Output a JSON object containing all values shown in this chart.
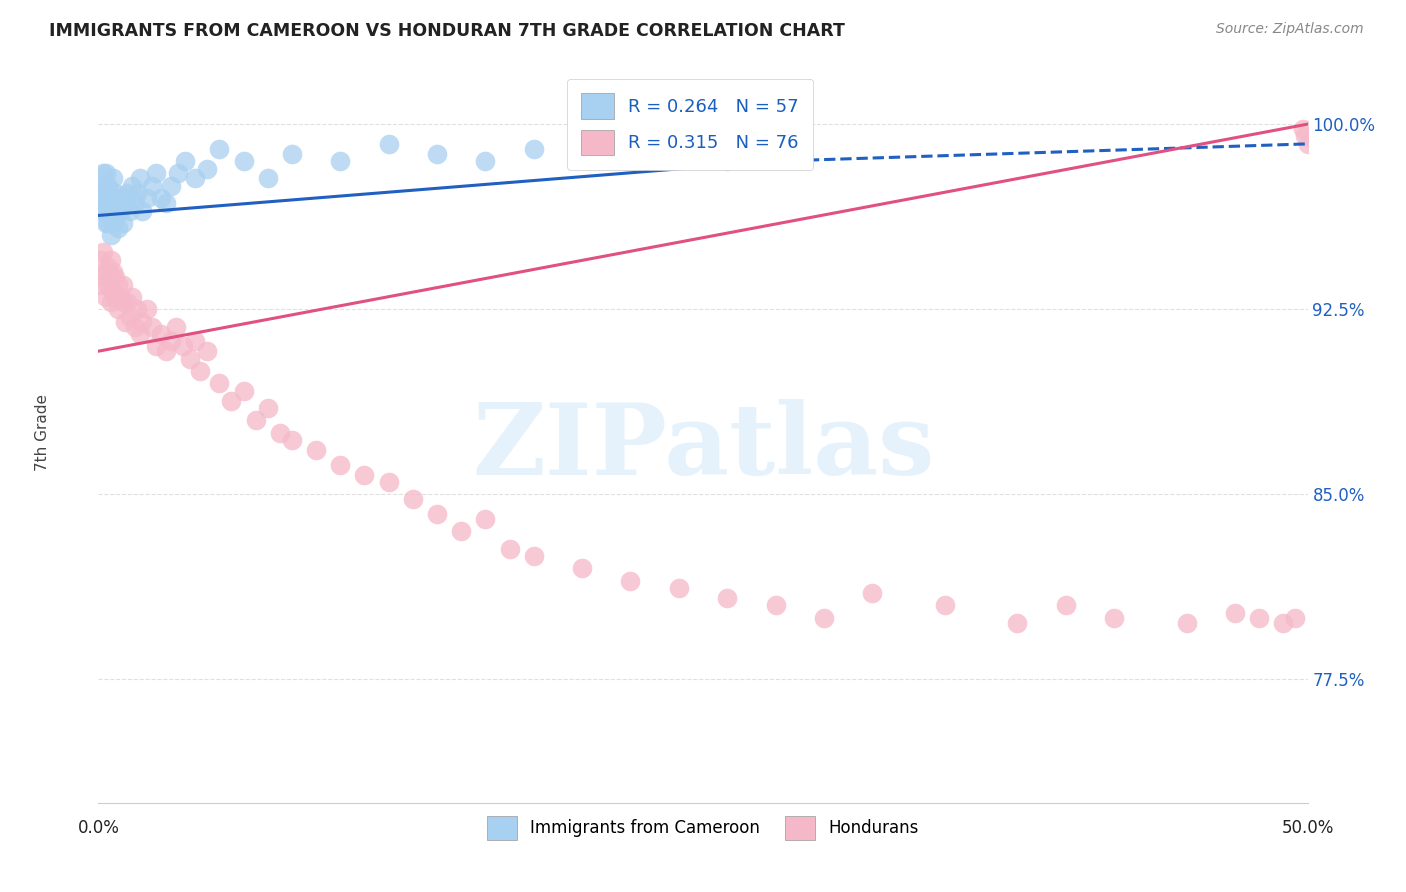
{
  "title": "IMMIGRANTS FROM CAMEROON VS HONDURAN 7TH GRADE CORRELATION CHART",
  "source": "Source: ZipAtlas.com",
  "ylabel": "7th Grade",
  "ylim": [
    0.725,
    1.025
  ],
  "xlim": [
    0.0,
    0.5
  ],
  "ytick_positions": [
    0.775,
    0.85,
    0.925,
    1.0
  ],
  "ytick_labels": [
    "77.5%",
    "85.0%",
    "92.5%",
    "100.0%"
  ],
  "legend_blue_label": "R = 0.264   N = 57",
  "legend_pink_label": "R = 0.315   N = 76",
  "legend1_label": "Immigrants from Cameroon",
  "legend2_label": "Hondurans",
  "blue_color": "#a8d0f0",
  "pink_color": "#f5b8c8",
  "blue_line_color": "#2060c0",
  "pink_line_color": "#e05080",
  "watermark_text": "ZIPatlas",
  "background_color": "#ffffff",
  "grid_color": "#e0e0e0",
  "blue_x": [
    0.001,
    0.001,
    0.002,
    0.002,
    0.002,
    0.003,
    0.003,
    0.003,
    0.003,
    0.004,
    0.004,
    0.004,
    0.005,
    0.005,
    0.005,
    0.006,
    0.006,
    0.006,
    0.007,
    0.007,
    0.008,
    0.008,
    0.009,
    0.01,
    0.01,
    0.011,
    0.012,
    0.013,
    0.014,
    0.015,
    0.016,
    0.017,
    0.018,
    0.02,
    0.022,
    0.024,
    0.026,
    0.028,
    0.03,
    0.033,
    0.036,
    0.04,
    0.045,
    0.05,
    0.06,
    0.07,
    0.08,
    0.1,
    0.12,
    0.14,
    0.16,
    0.18,
    0.2,
    0.22,
    0.24,
    0.26,
    0.28
  ],
  "blue_y": [
    0.97,
    0.975,
    0.965,
    0.97,
    0.98,
    0.96,
    0.965,
    0.975,
    0.98,
    0.96,
    0.968,
    0.975,
    0.955,
    0.965,
    0.97,
    0.96,
    0.968,
    0.978,
    0.962,
    0.972,
    0.958,
    0.97,
    0.965,
    0.96,
    0.97,
    0.968,
    0.972,
    0.965,
    0.975,
    0.968,
    0.972,
    0.978,
    0.965,
    0.97,
    0.975,
    0.98,
    0.97,
    0.968,
    0.975,
    0.98,
    0.985,
    0.978,
    0.982,
    0.99,
    0.985,
    0.978,
    0.988,
    0.985,
    0.992,
    0.988,
    0.985,
    0.99,
    0.992,
    0.988,
    0.99,
    0.985,
    0.992
  ],
  "pink_x": [
    0.001,
    0.001,
    0.002,
    0.002,
    0.003,
    0.003,
    0.004,
    0.004,
    0.005,
    0.005,
    0.005,
    0.006,
    0.006,
    0.007,
    0.007,
    0.008,
    0.008,
    0.009,
    0.01,
    0.01,
    0.011,
    0.012,
    0.013,
    0.014,
    0.015,
    0.016,
    0.017,
    0.018,
    0.02,
    0.022,
    0.024,
    0.026,
    0.028,
    0.03,
    0.032,
    0.035,
    0.038,
    0.04,
    0.042,
    0.045,
    0.05,
    0.055,
    0.06,
    0.065,
    0.07,
    0.075,
    0.08,
    0.09,
    0.1,
    0.11,
    0.12,
    0.13,
    0.14,
    0.15,
    0.16,
    0.17,
    0.18,
    0.2,
    0.22,
    0.24,
    0.26,
    0.28,
    0.3,
    0.32,
    0.35,
    0.38,
    0.4,
    0.42,
    0.45,
    0.47,
    0.48,
    0.49,
    0.495,
    0.498,
    0.499,
    0.5
  ],
  "pink_y": [
    0.945,
    0.935,
    0.938,
    0.948,
    0.93,
    0.94,
    0.935,
    0.942,
    0.928,
    0.938,
    0.945,
    0.932,
    0.94,
    0.93,
    0.938,
    0.935,
    0.925,
    0.93,
    0.928,
    0.935,
    0.92,
    0.928,
    0.922,
    0.93,
    0.918,
    0.925,
    0.915,
    0.92,
    0.925,
    0.918,
    0.91,
    0.915,
    0.908,
    0.912,
    0.918,
    0.91,
    0.905,
    0.912,
    0.9,
    0.908,
    0.895,
    0.888,
    0.892,
    0.88,
    0.885,
    0.875,
    0.872,
    0.868,
    0.862,
    0.858,
    0.855,
    0.848,
    0.842,
    0.835,
    0.84,
    0.828,
    0.825,
    0.82,
    0.815,
    0.812,
    0.808,
    0.805,
    0.8,
    0.81,
    0.805,
    0.798,
    0.805,
    0.8,
    0.798,
    0.802,
    0.8,
    0.798,
    0.8,
    0.998,
    0.995,
    0.992
  ]
}
